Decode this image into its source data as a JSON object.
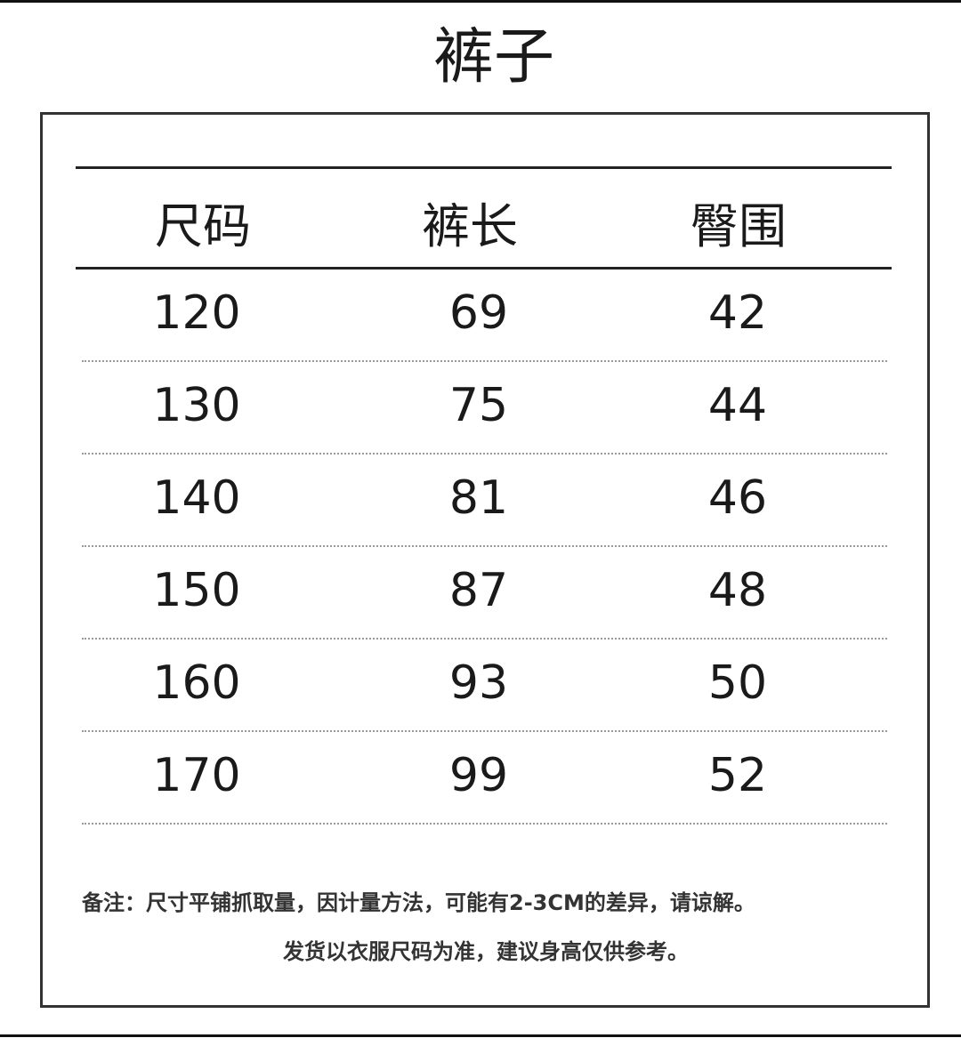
{
  "title": "裤子",
  "table": {
    "header": [
      "尺码",
      "裤长",
      "臀围"
    ],
    "rows": [
      [
        "120",
        "69",
        "42"
      ],
      [
        "130",
        "75",
        "44"
      ],
      [
        "140",
        "81",
        "46"
      ],
      [
        "150",
        "87",
        "48"
      ],
      [
        "160",
        "93",
        "50"
      ],
      [
        "170",
        "99",
        "52"
      ]
    ]
  },
  "notes": [
    "备注：尺寸平铺抓取量，因计量方法，可能有2-3CM的差异，请谅解。",
    "发货以衣服尺码为准，建议身高仅供参考。"
  ]
}
